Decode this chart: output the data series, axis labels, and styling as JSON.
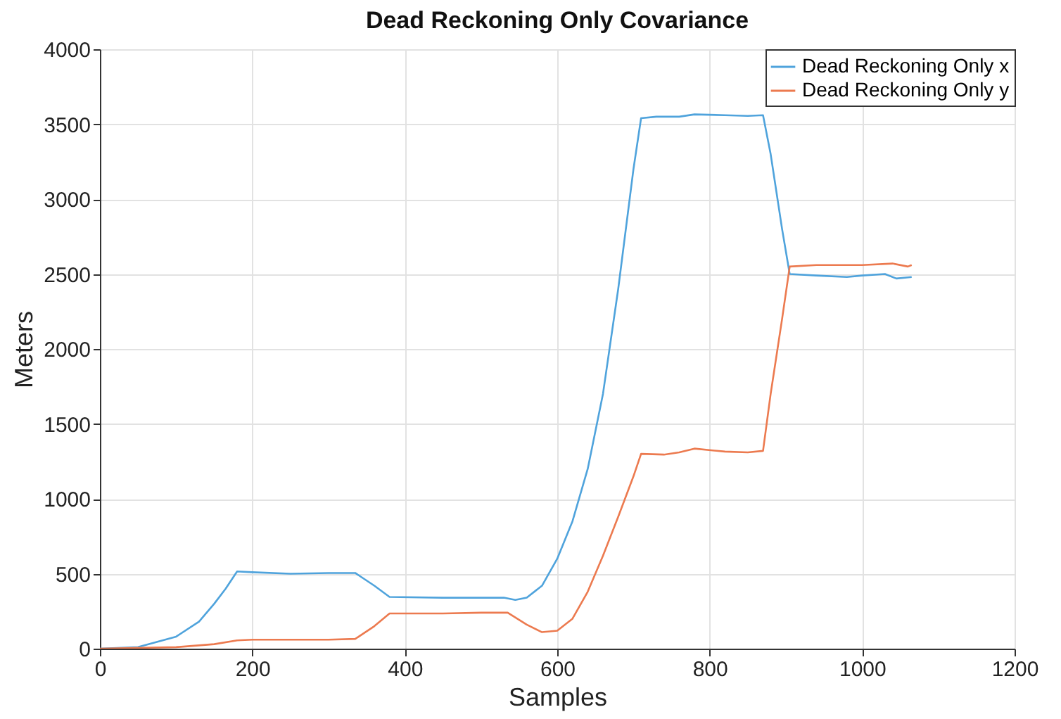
{
  "chart_data": {
    "type": "line",
    "title": "Dead Reckoning Only Covariance",
    "xlabel": "Samples",
    "ylabel": "Meters",
    "xlim": [
      0,
      1200
    ],
    "xticks": [
      0,
      200,
      400,
      600,
      800,
      1000,
      1200
    ],
    "ylim": [
      0,
      4000
    ],
    "yticks": [
      0,
      500,
      1000,
      1500,
      2000,
      2500,
      3000,
      3500,
      4000
    ],
    "grid": true,
    "legend": "top right",
    "marker": "none",
    "line_style": "solid",
    "series": [
      {
        "name": "Dead Reckoning Only x",
        "color": "#4fa3dc",
        "x": [
          0,
          50,
          100,
          130,
          150,
          165,
          180,
          200,
          250,
          300,
          335,
          360,
          380,
          450,
          500,
          530,
          545,
          560,
          580,
          600,
          620,
          640,
          660,
          680,
          700,
          710,
          730,
          760,
          780,
          820,
          850,
          870,
          880,
          895,
          905,
          940,
          980,
          1000,
          1030,
          1045,
          1065
        ],
        "values": [
          0,
          10,
          80,
          180,
          300,
          400,
          515,
          510,
          500,
          505,
          505,
          420,
          345,
          340,
          340,
          340,
          325,
          340,
          420,
          600,
          850,
          1200,
          1700,
          2400,
          3200,
          3540,
          3550,
          3550,
          3565,
          3560,
          3555,
          3560,
          3300,
          2800,
          2500,
          2490,
          2480,
          2490,
          2500,
          2470,
          2480
        ]
      },
      {
        "name": "Dead Reckoning Only y",
        "color": "#ec7a4f",
        "x": [
          0,
          100,
          150,
          180,
          200,
          250,
          300,
          335,
          360,
          380,
          450,
          500,
          535,
          560,
          580,
          600,
          620,
          640,
          660,
          680,
          700,
          710,
          740,
          760,
          780,
          820,
          850,
          870,
          880,
          895,
          905,
          940,
          1000,
          1040,
          1060,
          1065
        ],
        "values": [
          0,
          10,
          30,
          55,
          60,
          60,
          60,
          65,
          150,
          235,
          235,
          240,
          240,
          160,
          110,
          120,
          200,
          380,
          620,
          880,
          1150,
          1300,
          1295,
          1310,
          1335,
          1315,
          1310,
          1320,
          1700,
          2200,
          2550,
          2560,
          2560,
          2570,
          2550,
          2560
        ]
      }
    ]
  }
}
